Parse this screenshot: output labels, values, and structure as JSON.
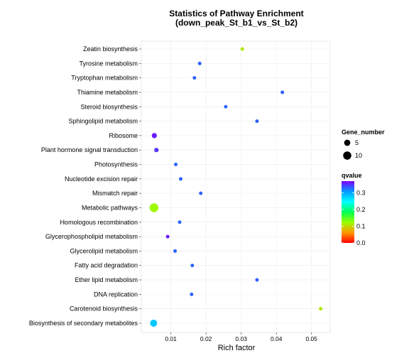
{
  "chart_data": {
    "type": "scatter",
    "title_line1": "Statistics of Pathway Enrichment",
    "title_line2": "(down_peak_St_b1_vs_St_b2)",
    "xlabel": "Rich factor",
    "ylabel": "",
    "xlim": [
      0.0016,
      0.0553
    ],
    "xticks": [
      "0.01",
      "0.02",
      "0.03",
      "0.04",
      "0.05"
    ],
    "xtick_values": [
      0.01,
      0.02,
      0.03,
      0.04,
      0.05
    ],
    "grid": true,
    "categories": [
      "Zeatin biosynthesis",
      "Tyrosine metabolism",
      "Tryptophan metabolism",
      "Thiamine metabolism",
      "Steroid biosynthesis",
      "Sphingolipid metabolism",
      "Ribosome",
      "Plant hormone signal transduction",
      "Photosynthesis",
      "Nucleotide excision repair",
      "Mismatch repair",
      "Metabolic pathways",
      "Homologous recombination",
      "Glycerophospholipid metabolism",
      "Glycerolipid metabolism",
      "Fatty acid degradation",
      "Ether lipid metabolism",
      "DNA replication",
      "Carotenoid biosynthesis",
      "Biosynthesis of secondary metabolites"
    ],
    "points": [
      {
        "rich_factor": 0.0303,
        "gene_number": 1,
        "qvalue": 0.11
      },
      {
        "rich_factor": 0.0182,
        "gene_number": 1,
        "qvalue": 0.33
      },
      {
        "rich_factor": 0.0167,
        "gene_number": 1,
        "qvalue": 0.33
      },
      {
        "rich_factor": 0.0417,
        "gene_number": 1,
        "qvalue": 0.33
      },
      {
        "rich_factor": 0.0256,
        "gene_number": 1,
        "qvalue": 0.33
      },
      {
        "rich_factor": 0.0345,
        "gene_number": 1,
        "qvalue": 0.33
      },
      {
        "rich_factor": 0.0053,
        "gene_number": 3,
        "qvalue": 0.36
      },
      {
        "rich_factor": 0.0059,
        "gene_number": 2,
        "qvalue": 0.35
      },
      {
        "rich_factor": 0.0114,
        "gene_number": 1,
        "qvalue": 0.33
      },
      {
        "rich_factor": 0.0128,
        "gene_number": 1,
        "qvalue": 0.33
      },
      {
        "rich_factor": 0.0185,
        "gene_number": 1,
        "qvalue": 0.33
      },
      {
        "rich_factor": 0.0052,
        "gene_number": 12,
        "qvalue": 0.12
      },
      {
        "rich_factor": 0.0125,
        "gene_number": 1,
        "qvalue": 0.33
      },
      {
        "rich_factor": 0.0091,
        "gene_number": 1,
        "qvalue": 0.36
      },
      {
        "rich_factor": 0.0112,
        "gene_number": 1,
        "qvalue": 0.33
      },
      {
        "rich_factor": 0.0161,
        "gene_number": 1,
        "qvalue": 0.33
      },
      {
        "rich_factor": 0.0345,
        "gene_number": 1,
        "qvalue": 0.33
      },
      {
        "rich_factor": 0.0159,
        "gene_number": 1,
        "qvalue": 0.33
      },
      {
        "rich_factor": 0.0526,
        "gene_number": 1,
        "qvalue": 0.11
      },
      {
        "rich_factor": 0.0051,
        "gene_number": 7,
        "qvalue": 0.28
      }
    ],
    "legend_size": {
      "title": "Gene_number",
      "entries": [
        {
          "label": "5",
          "value": 5
        },
        {
          "label": "10",
          "value": 10
        }
      ]
    },
    "legend_color": {
      "title": "qvalue",
      "ticks": [
        "0.0",
        "0.1",
        "0.2",
        "0.3"
      ],
      "tick_values": [
        0.0,
        0.1,
        0.2,
        0.3
      ],
      "range": [
        0.0,
        0.37
      ],
      "gradient_colors": [
        "#ff0000",
        "#ff9900",
        "#99ff00",
        "#00ff55",
        "#00ffff",
        "#0099ff",
        "#7f00ff"
      ]
    },
    "legend_placement": "right"
  }
}
